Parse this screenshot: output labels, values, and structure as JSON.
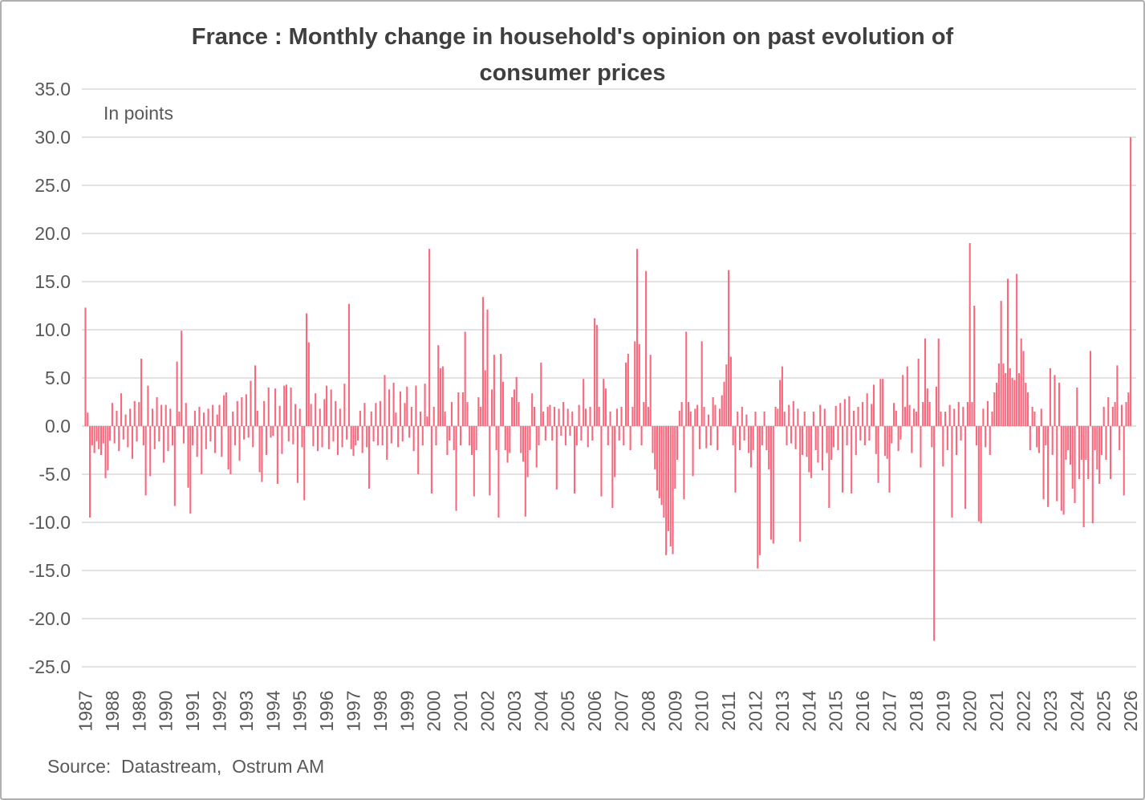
{
  "title": {
    "line1": "France : Monthly change in household's opinion on past evolution of",
    "line2": "consumer prices"
  },
  "annotation": "In points",
  "source": "Source:  Datastream,  Ostrum AM",
  "colors": {
    "bar": "#F9697E",
    "grid": "#D9D9D9",
    "axis_text": "#595959",
    "title_text": "#3F3F3F",
    "border": "#B0B0B0",
    "background": "#FFFFFF"
  },
  "chart_data": {
    "type": "bar",
    "title": "France : Monthly change in household's opinion on past evolution of consumer prices",
    "ylabel": "In points",
    "series_name": "Monthly change in household opinion (points)",
    "frequency": "monthly",
    "grid": true,
    "legend": "none",
    "ylim": [
      -25,
      35
    ],
    "ytick_step": 5,
    "ytick_values": [
      35,
      30,
      25,
      20,
      15,
      10,
      5,
      0,
      -5,
      -10,
      -15,
      -20,
      -25
    ],
    "ytick_labels": [
      "35.0",
      "30.0",
      "25.0",
      "20.0",
      "15.0",
      "10.0",
      "5.0",
      "0.0",
      "-5.0",
      "-10.0",
      "-15.0",
      "-20.0",
      "-25.0"
    ],
    "x_first_year": 1987,
    "x_last_year": 2026,
    "monthly": {
      "1987": [
        12.3,
        1.4,
        -9.5,
        -2.0,
        -2.8,
        -1.6,
        -2.4,
        -3.0,
        -1.8,
        -5.4,
        -4.6,
        -1.5
      ],
      "1988": [
        2.4,
        -1.8,
        1.6,
        -2.6,
        3.4,
        -1.4,
        1.2,
        -2.2,
        1.8,
        -3.4,
        2.6,
        -1.6
      ],
      "1989": [
        2.5,
        7.0,
        -2.0,
        -7.2,
        4.2,
        -5.2,
        1.8,
        -2.4,
        3.0,
        -1.6,
        2.2,
        -3.8
      ],
      "1990": [
        2.2,
        -2.6,
        1.8,
        -2.0,
        -8.3,
        6.7,
        1.5,
        9.9,
        -1.8,
        2.4,
        -6.4,
        -9.1
      ],
      "1991": [
        -2.0,
        1.6,
        -3.2,
        2.0,
        -5.0,
        1.4,
        -2.4,
        1.8,
        -1.6,
        2.2,
        -2.8,
        1.2
      ],
      "1992": [
        2.2,
        -3.2,
        3.2,
        3.5,
        -4.5,
        -5.0,
        1.5,
        -2.0,
        2.6,
        -3.6,
        3.0,
        -1.4
      ],
      "1993": [
        3.3,
        -1.2,
        4.7,
        -2.2,
        6.3,
        1.6,
        -4.8,
        -5.8,
        2.6,
        -3.0,
        4.0,
        -1.2
      ],
      "1994": [
        -1.0,
        3.9,
        -6.0,
        2.1,
        -2.9,
        4.2,
        4.3,
        -1.6,
        4.0,
        -1.9,
        2.3,
        -5.9
      ],
      "1995": [
        1.8,
        -2.2,
        -7.7,
        11.7,
        8.7,
        2.3,
        -2.1,
        3.4,
        -2.6,
        1.8,
        -2.2,
        2.8
      ],
      "1996": [
        4.2,
        -2.4,
        3.8,
        -1.6,
        2.6,
        -3.0,
        1.8,
        -2.2,
        4.4,
        -1.4,
        12.7,
        -2.4
      ],
      "1997": [
        -3.1,
        -2.0,
        -1.5,
        1.6,
        -2.8,
        2.4,
        -2.2,
        -6.5,
        1.5,
        -1.6,
        2.4,
        -2.0
      ],
      "1998": [
        2.6,
        -2.0,
        5.3,
        -3.5,
        3.8,
        -1.8,
        4.5,
        1.4,
        -2.2,
        3.6,
        -1.6,
        2.4
      ],
      "1999": [
        4.1,
        -1.2,
        2.0,
        -2.6,
        4.2,
        -5.0,
        1.5,
        -2.0,
        4.4,
        1.0,
        18.4,
        -7.0
      ],
      "2000": [
        2.0,
        -2.0,
        8.4,
        6.0,
        6.2,
        1.5,
        -3.0,
        -1.5,
        2.5,
        -2.5,
        -8.8,
        3.5
      ],
      "2001": [
        -2.0,
        3.5,
        9.8,
        2.5,
        -2.0,
        -3.0,
        -7.3,
        -2.5,
        3.0,
        2.0,
        13.4,
        5.8
      ],
      "2002": [
        12.1,
        -7.2,
        3.8,
        7.4,
        -2.5,
        -9.5,
        7.5,
        4.6,
        -2.5,
        -3.8,
        -2.8,
        3.0
      ],
      "2003": [
        3.8,
        5.1,
        2.5,
        -2.8,
        -3.7,
        -9.4,
        -5.3,
        -2.5,
        3.4,
        2.0,
        -4.3,
        -2.0
      ],
      "2004": [
        6.6,
        1.5,
        -1.5,
        2.0,
        2.2,
        -1.5,
        2.0,
        -6.6,
        1.8,
        -1.0,
        2.5,
        -2.0
      ],
      "2005": [
        1.8,
        -1.0,
        1.5,
        -7.0,
        -2.0,
        2.2,
        -1.5,
        4.9,
        1.8,
        -2.2,
        2.0,
        -1.5
      ],
      "2006": [
        11.2,
        10.5,
        2.0,
        -7.3,
        4.9,
        3.9,
        -2.0,
        1.5,
        -8.5,
        -5.3,
        1.8,
        -1.5
      ],
      "2007": [
        2.0,
        -2.0,
        6.6,
        7.5,
        -2.5,
        2.0,
        8.8,
        18.4,
        8.5,
        -2.0,
        2.5,
        16.1
      ],
      "2008": [
        2.0,
        7.4,
        -2.8,
        -4.5,
        -6.7,
        -7.5,
        -8.2,
        -9.5,
        -13.4,
        -10.9,
        -12.5,
        -13.3
      ],
      "2009": [
        -6.5,
        -3.5,
        1.6,
        2.5,
        -7.6,
        9.8,
        2.5,
        1.5,
        -5.2,
        1.8,
        2.2,
        -2.4
      ],
      "2010": [
        8.8,
        2.0,
        -2.3,
        1.2,
        -2.0,
        3.0,
        2.2,
        -2.5,
        1.8,
        3.2,
        4.6,
        6.4
      ],
      "2011": [
        16.2,
        7.2,
        -2.0,
        -6.9,
        1.5,
        -2.5,
        2.0,
        -1.5,
        1.2,
        -2.8,
        -4.3,
        -2.5
      ],
      "2012": [
        1.5,
        -14.8,
        -13.4,
        -2.0,
        1.5,
        -2.5,
        -4.5,
        -11.8,
        -12.2,
        2.0,
        1.8,
        4.8
      ],
      "2013": [
        6.2,
        1.5,
        -2.0,
        2.2,
        -1.8,
        2.6,
        -2.4,
        1.8,
        -12.0,
        -3.0,
        1.5,
        -3.2
      ],
      "2014": [
        -4.8,
        -5.4,
        1.5,
        -2.5,
        -3.8,
        2.2,
        -4.6,
        1.8,
        -2.8,
        -8.5,
        -3.5,
        -2.2
      ],
      "2015": [
        2.1,
        -2.5,
        2.4,
        -6.9,
        2.8,
        -2.0,
        3.1,
        -7.0,
        1.6,
        -3.0,
        2.0,
        -1.5
      ],
      "2016": [
        2.5,
        -2.0,
        3.4,
        -1.5,
        2.3,
        4.3,
        -2.9,
        -5.9,
        4.9,
        4.9,
        -3.1,
        -3.4
      ],
      "2017": [
        -6.9,
        -1.8,
        2.4,
        1.6,
        -2.6,
        -1.4,
        5.3,
        2.0,
        6.2,
        2.2,
        -2.8,
        1.8
      ],
      "2018": [
        1.5,
        7.0,
        -4.3,
        2.5,
        9.1,
        3.9,
        2.5,
        -2.2,
        -22.3,
        4.1,
        9.1,
        1.5
      ],
      "2019": [
        -4.2,
        1.5,
        -2.5,
        2.2,
        -9.5,
        1.8,
        -3.0,
        2.5,
        -1.5,
        2.0,
        -8.6,
        2.5
      ],
      "2020": [
        19.0,
        2.5,
        12.5,
        -2.0,
        -9.9,
        -10.1,
        1.8,
        -2.2,
        2.6,
        -3.0,
        1.5,
        3.5
      ],
      "2021": [
        4.5,
        6.5,
        13.0,
        6.5,
        5.5,
        15.3,
        6.0,
        5.0,
        4.8,
        15.8,
        5.5,
        9.1
      ],
      "2022": [
        7.8,
        4.5,
        3.5,
        -2.5,
        2.0,
        1.5,
        -2.2,
        -2.8,
        1.8,
        -7.6,
        -2.0,
        -8.4
      ],
      "2023": [
        6.0,
        -3.0,
        5.3,
        -7.8,
        4.5,
        -8.8,
        -9.2,
        -3.5,
        -2.5,
        -4.0,
        -6.5,
        -8.0
      ],
      "2024": [
        4.0,
        -5.5,
        -3.5,
        -10.5,
        -3.5,
        -5.5,
        7.8,
        -10.1,
        -2.5,
        -4.5,
        -6.0,
        -3.0
      ],
      "2025": [
        2.0,
        -3.5,
        3.0,
        -5.5,
        2.0,
        2.5,
        6.3,
        -2.5,
        2.2,
        -7.2,
        2.5,
        3.5
      ],
      "2026": [
        30.0
      ]
    }
  }
}
